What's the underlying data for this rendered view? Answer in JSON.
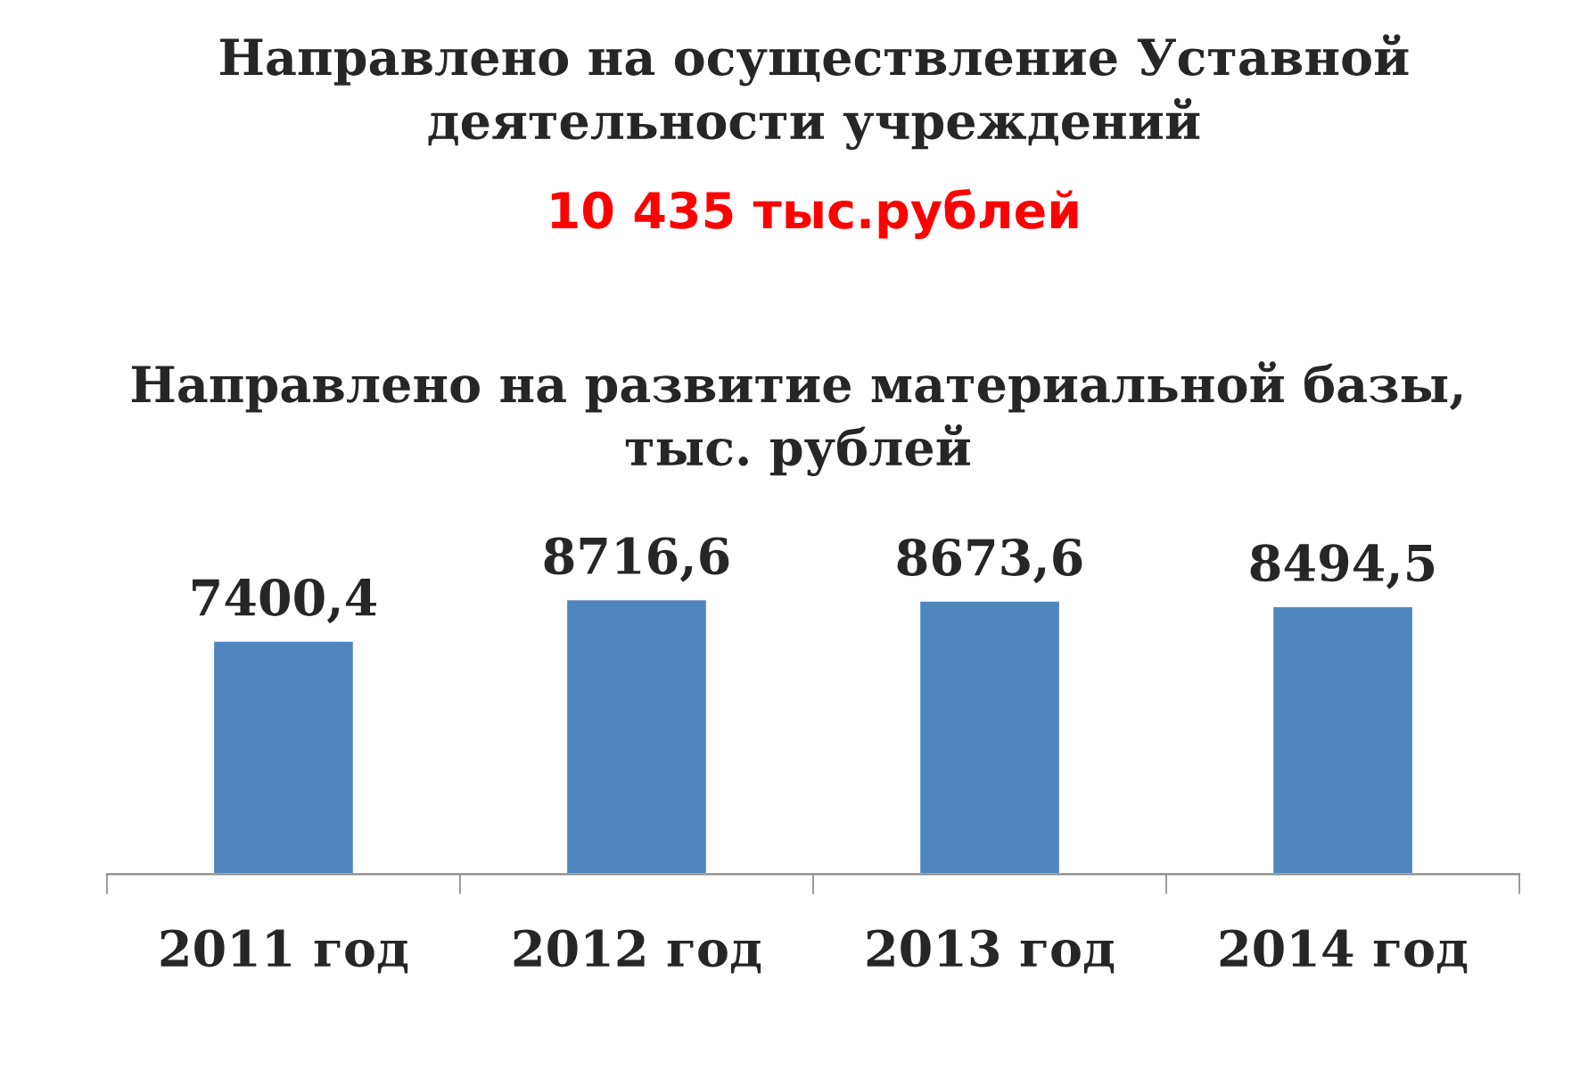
{
  "chart_data": {
    "type": "bar",
    "title": "Направлено на развитие материальной базы,\nтыс. рублей",
    "annotations": [
      "Направлено на осуществление Уставной\nдеятельности учреждений",
      "10 435 тыс.рублей"
    ],
    "categories": [
      "2011 год",
      "2012 год",
      "2013 год",
      "2014 год"
    ],
    "values": [
      7400.4,
      8716.6,
      8673.6,
      8494.5
    ],
    "value_labels": [
      "7400,4",
      "8716,6",
      "8673,6",
      "8494,5"
    ],
    "color": "#4f86c0",
    "tick_labels": "x",
    "grid": false,
    "legend": false
  }
}
